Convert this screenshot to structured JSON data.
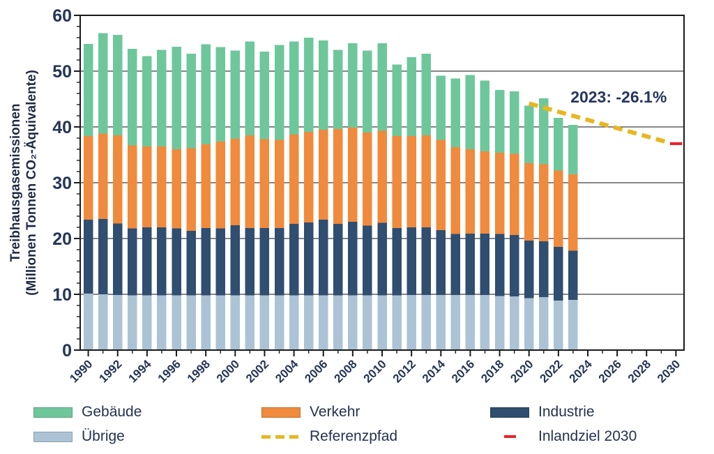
{
  "chart_data": {
    "type": "bar",
    "stacked": true,
    "title": "",
    "ylabel_line1": "Treibhausgasemissionen",
    "ylabel_line2": "(Millionen Tonnen CO₂-Äquivalente)",
    "xlabel": "",
    "ylim": [
      0,
      60
    ],
    "yticks_major": [
      0,
      10,
      20,
      30,
      40,
      50,
      60
    ],
    "ytick_minor_step": 2,
    "xticks_labeled": [
      1990,
      1992,
      1994,
      1996,
      1998,
      2000,
      2002,
      2004,
      2006,
      2008,
      2010,
      2012,
      2014,
      2016,
      2018,
      2020,
      2022,
      2024,
      2026,
      2028,
      2030
    ],
    "xtick_minor_step": 1,
    "xrange": [
      1990,
      2030
    ],
    "grid": "horizontal",
    "categories": [
      1990,
      1991,
      1992,
      1993,
      1994,
      1995,
      1996,
      1997,
      1998,
      1999,
      2000,
      2001,
      2002,
      2003,
      2004,
      2005,
      2006,
      2007,
      2008,
      2009,
      2010,
      2011,
      2012,
      2013,
      2014,
      2015,
      2016,
      2017,
      2018,
      2019,
      2020,
      2021,
      2022,
      2023
    ],
    "series": [
      {
        "name": "Übrige",
        "color": "#abc3d5",
        "values": [
          10.1,
          10.0,
          9.9,
          9.8,
          9.8,
          9.8,
          9.8,
          9.8,
          9.8,
          9.8,
          9.8,
          9.8,
          9.8,
          9.8,
          9.8,
          9.8,
          9.8,
          9.8,
          9.8,
          9.8,
          9.8,
          9.8,
          9.9,
          9.9,
          9.9,
          9.9,
          9.9,
          9.9,
          9.7,
          9.6,
          9.3,
          9.5,
          8.9,
          9.0
        ]
      },
      {
        "name": "Industrie",
        "color": "#2f4e70",
        "values": [
          13.3,
          13.5,
          12.8,
          12.0,
          12.2,
          12.2,
          12.0,
          11.6,
          12.1,
          12.0,
          12.6,
          12.1,
          12.1,
          12.1,
          12.8,
          13.1,
          13.6,
          12.8,
          13.2,
          12.5,
          13.0,
          12.1,
          12.1,
          12.1,
          11.6,
          10.9,
          11.0,
          11.0,
          11.1,
          11.0,
          10.3,
          10.0,
          9.6,
          8.8
        ]
      },
      {
        "name": "Verkehr",
        "color": "#f08a3c",
        "values": [
          15.0,
          15.3,
          15.8,
          14.9,
          14.5,
          14.5,
          14.2,
          14.8,
          15.0,
          15.6,
          15.5,
          16.6,
          15.9,
          15.8,
          16.0,
          16.2,
          16.1,
          17.0,
          16.9,
          16.7,
          16.5,
          16.5,
          16.4,
          16.5,
          16.2,
          15.6,
          15.1,
          14.7,
          14.6,
          14.6,
          13.9,
          13.8,
          13.7,
          13.7
        ]
      },
      {
        "name": "Gebäude",
        "color": "#6ec79b",
        "values": [
          16.5,
          18.0,
          18.0,
          17.3,
          16.2,
          17.3,
          18.4,
          16.9,
          17.9,
          16.9,
          15.8,
          16.8,
          15.7,
          17.0,
          16.7,
          16.9,
          16.0,
          14.2,
          15.1,
          14.7,
          15.7,
          12.8,
          14.1,
          14.6,
          11.5,
          12.3,
          13.3,
          12.7,
          11.2,
          11.2,
          10.3,
          11.8,
          9.4,
          8.9
        ]
      }
    ],
    "reference_path": {
      "name": "Referenzpfad",
      "color": "#e9b61f",
      "points": [
        [
          2020,
          44.2
        ],
        [
          2030,
          37.3
        ]
      ]
    },
    "target": {
      "name": "Inlandziel 2030",
      "color": "#ea2329",
      "year": 2030,
      "value": 37.0
    },
    "annotation": {
      "text": "2023:  -26.1%",
      "x": 2026.1,
      "y": 44.4,
      "color": "#24355e"
    },
    "legend_position": "below"
  },
  "legend": {
    "items": [
      {
        "key": "gebaeude",
        "label": "Gebäude",
        "swatch": "patch",
        "color": "#6ec79b"
      },
      {
        "key": "verkehr",
        "label": "Verkehr",
        "swatch": "patch",
        "color": "#f08a3c"
      },
      {
        "key": "industrie",
        "label": "Industrie",
        "swatch": "patch",
        "color": "#2f4e70"
      },
      {
        "key": "uebrige",
        "label": "Übrige",
        "swatch": "patch",
        "color": "#abc3d5"
      },
      {
        "key": "referenzpfad",
        "label": "Referenzpfad",
        "swatch": "dashes",
        "color": "#e9b61f"
      },
      {
        "key": "inlandziel-2030",
        "label": "Inlandziel 2030",
        "swatch": "dash",
        "color": "#ea2329"
      }
    ]
  },
  "style": {
    "tick_text_color": "#243656",
    "grid_color": "#3f3f3f",
    "axis_color": "#1a1a1a"
  }
}
